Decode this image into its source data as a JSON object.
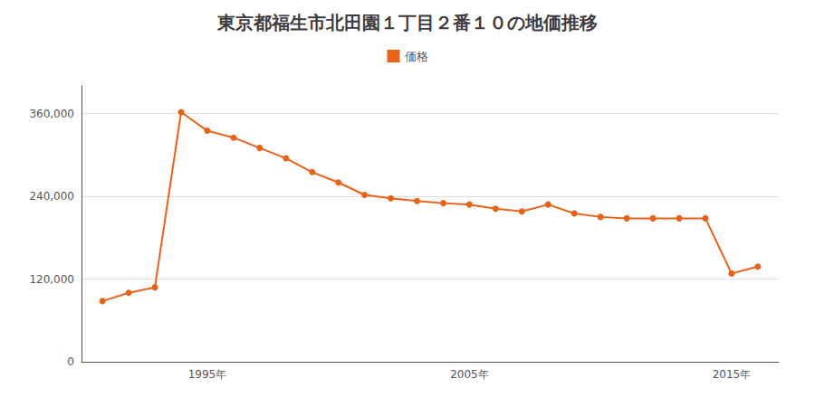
{
  "chart_data": {
    "type": "line",
    "title": "東京都福生市北田園１丁目２番１０の地価推移",
    "x": [
      1991,
      1992,
      1993,
      1994,
      1995,
      1996,
      1997,
      1998,
      1999,
      2000,
      2001,
      2002,
      2003,
      2004,
      2005,
      2006,
      2007,
      2008,
      2009,
      2010,
      2011,
      2012,
      2013,
      2014,
      2015,
      2016
    ],
    "series": [
      {
        "name": "価格",
        "color": "#e8621a",
        "marker": "circle",
        "values": [
          88000,
          100000,
          108000,
          362000,
          335000,
          325000,
          310000,
          295000,
          275000,
          260000,
          242000,
          237000,
          233000,
          230000,
          228000,
          222000,
          218000,
          228000,
          215000,
          210000,
          208000,
          208000,
          208000,
          208000,
          128000,
          138000
        ]
      }
    ],
    "xlim": [
      1990.2,
      2016.8
    ],
    "xticks": [
      {
        "value": 1995,
        "label": "1995年"
      },
      {
        "value": 2005,
        "label": "2005年"
      },
      {
        "value": 2015,
        "label": "2015年"
      }
    ],
    "ylim": [
      0,
      400000
    ],
    "yticks": [
      0,
      {
        "value": 120000,
        "label": "120,000"
      },
      {
        "value": 240000,
        "label": "240,000"
      },
      {
        "value": 360000,
        "label": "360,000"
      }
    ],
    "grid": true,
    "legend": "top"
  }
}
